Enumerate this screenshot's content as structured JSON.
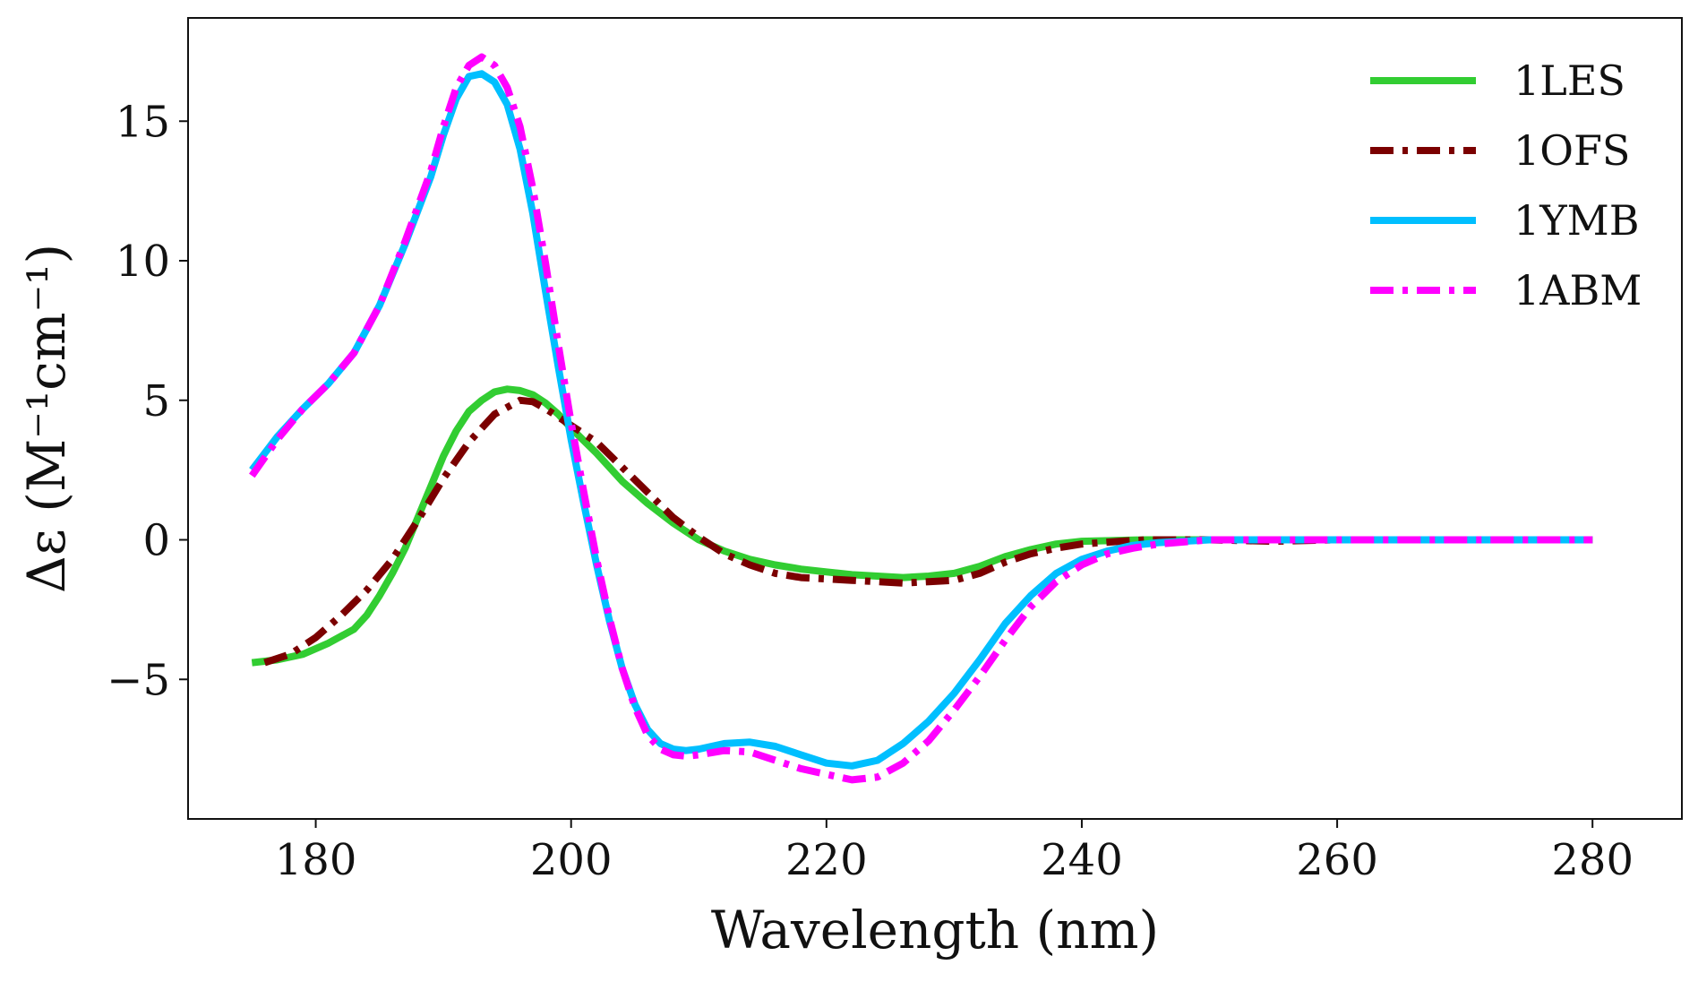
{
  "chart_data": {
    "type": "line",
    "title": "",
    "xlabel": "Wavelength (nm)",
    "ylabel": "Δε (M⁻¹cm⁻¹)",
    "xlim": [
      170,
      287
    ],
    "ylim": [
      -10,
      18.7
    ],
    "xticks": [
      180,
      200,
      220,
      240,
      260,
      280
    ],
    "yticks": [
      -5,
      0,
      5,
      10,
      15
    ],
    "xtick_labels": [
      "180",
      "200",
      "220",
      "240",
      "260",
      "280"
    ],
    "ytick_labels": [
      "−5",
      "0",
      "5",
      "10",
      "15"
    ],
    "grid": false,
    "legend_position": "top-right",
    "series": [
      {
        "name": "1LES",
        "color": "#32cd32",
        "style": "solid",
        "points": [
          [
            175,
            -4.4
          ],
          [
            177,
            -4.3
          ],
          [
            179,
            -4.1
          ],
          [
            181,
            -3.7
          ],
          [
            183,
            -3.2
          ],
          [
            184,
            -2.7
          ],
          [
            185,
            -2.0
          ],
          [
            186,
            -1.2
          ],
          [
            187,
            -0.3
          ],
          [
            188,
            0.8
          ],
          [
            189,
            1.9
          ],
          [
            190,
            3.0
          ],
          [
            191,
            3.9
          ],
          [
            192,
            4.6
          ],
          [
            193,
            5.0
          ],
          [
            194,
            5.3
          ],
          [
            195,
            5.4
          ],
          [
            196,
            5.35
          ],
          [
            197,
            5.2
          ],
          [
            198,
            4.9
          ],
          [
            199,
            4.5
          ],
          [
            200,
            4.0
          ],
          [
            202,
            3.1
          ],
          [
            204,
            2.1
          ],
          [
            206,
            1.3
          ],
          [
            208,
            0.6
          ],
          [
            210,
            0.0
          ],
          [
            212,
            -0.4
          ],
          [
            214,
            -0.7
          ],
          [
            216,
            -0.9
          ],
          [
            218,
            -1.05
          ],
          [
            220,
            -1.15
          ],
          [
            222,
            -1.25
          ],
          [
            224,
            -1.3
          ],
          [
            226,
            -1.35
          ],
          [
            228,
            -1.3
          ],
          [
            230,
            -1.2
          ],
          [
            232,
            -0.95
          ],
          [
            234,
            -0.6
          ],
          [
            236,
            -0.35
          ],
          [
            238,
            -0.15
          ],
          [
            240,
            -0.05
          ],
          [
            245,
            0.0
          ],
          [
            250,
            0.0
          ],
          [
            260,
            0.0
          ],
          [
            270,
            0.0
          ],
          [
            280,
            0.0
          ]
        ]
      },
      {
        "name": "1OFS",
        "color": "#7b0000",
        "style": "dashdot",
        "points": [
          [
            176,
            -4.4
          ],
          [
            178,
            -4.1
          ],
          [
            180,
            -3.5
          ],
          [
            182,
            -2.7
          ],
          [
            184,
            -1.8
          ],
          [
            186,
            -0.7
          ],
          [
            188,
            0.7
          ],
          [
            190,
            2.2
          ],
          [
            192,
            3.5
          ],
          [
            194,
            4.5
          ],
          [
            196,
            5.0
          ],
          [
            197,
            4.95
          ],
          [
            198,
            4.7
          ],
          [
            200,
            4.1
          ],
          [
            202,
            3.5
          ],
          [
            204,
            2.6
          ],
          [
            206,
            1.7
          ],
          [
            208,
            0.8
          ],
          [
            210,
            0.1
          ],
          [
            212,
            -0.5
          ],
          [
            214,
            -0.9
          ],
          [
            216,
            -1.2
          ],
          [
            218,
            -1.35
          ],
          [
            220,
            -1.4
          ],
          [
            222,
            -1.45
          ],
          [
            224,
            -1.5
          ],
          [
            226,
            -1.55
          ],
          [
            228,
            -1.5
          ],
          [
            230,
            -1.45
          ],
          [
            232,
            -1.2
          ],
          [
            234,
            -0.8
          ],
          [
            236,
            -0.5
          ],
          [
            238,
            -0.3
          ],
          [
            240,
            -0.15
          ],
          [
            243,
            -0.05
          ],
          [
            245,
            0.0
          ],
          [
            250,
            0.0
          ],
          [
            255,
            -0.05
          ],
          [
            260,
            0.0
          ],
          [
            270,
            0.0
          ],
          [
            280,
            0.0
          ]
        ]
      },
      {
        "name": "1YMB",
        "color": "#00bfff",
        "style": "solid",
        "points": [
          [
            175,
            2.5
          ],
          [
            177,
            3.7
          ],
          [
            179,
            4.7
          ],
          [
            181,
            5.6
          ],
          [
            183,
            6.7
          ],
          [
            185,
            8.4
          ],
          [
            187,
            10.6
          ],
          [
            189,
            13.0
          ],
          [
            190,
            14.5
          ],
          [
            191,
            15.8
          ],
          [
            192,
            16.6
          ],
          [
            193,
            16.7
          ],
          [
            194,
            16.4
          ],
          [
            195,
            15.6
          ],
          [
            196,
            14.0
          ],
          [
            197,
            11.7
          ],
          [
            198,
            8.9
          ],
          [
            199,
            6.2
          ],
          [
            200,
            3.6
          ],
          [
            201,
            1.3
          ],
          [
            202,
            -0.9
          ],
          [
            203,
            -2.9
          ],
          [
            204,
            -4.6
          ],
          [
            205,
            -5.9
          ],
          [
            206,
            -6.8
          ],
          [
            207,
            -7.3
          ],
          [
            208,
            -7.5
          ],
          [
            209,
            -7.55
          ],
          [
            210,
            -7.5
          ],
          [
            212,
            -7.3
          ],
          [
            214,
            -7.25
          ],
          [
            216,
            -7.4
          ],
          [
            218,
            -7.7
          ],
          [
            220,
            -8.0
          ],
          [
            222,
            -8.1
          ],
          [
            224,
            -7.9
          ],
          [
            226,
            -7.3
          ],
          [
            228,
            -6.5
          ],
          [
            230,
            -5.5
          ],
          [
            232,
            -4.3
          ],
          [
            234,
            -3.0
          ],
          [
            236,
            -2.0
          ],
          [
            238,
            -1.2
          ],
          [
            240,
            -0.7
          ],
          [
            242,
            -0.4
          ],
          [
            244,
            -0.2
          ],
          [
            246,
            -0.1
          ],
          [
            250,
            0.0
          ],
          [
            255,
            0.0
          ],
          [
            260,
            0.0
          ],
          [
            270,
            0.0
          ],
          [
            280,
            0.0
          ]
        ]
      },
      {
        "name": "1ABM",
        "color": "#ff00ff",
        "style": "dashdot",
        "points": [
          [
            175,
            2.3
          ],
          [
            177,
            3.6
          ],
          [
            179,
            4.7
          ],
          [
            181,
            5.6
          ],
          [
            183,
            6.7
          ],
          [
            185,
            8.4
          ],
          [
            187,
            10.7
          ],
          [
            189,
            13.2
          ],
          [
            190,
            14.8
          ],
          [
            191,
            16.2
          ],
          [
            192,
            17.0
          ],
          [
            193,
            17.3
          ],
          [
            194,
            17.0
          ],
          [
            195,
            16.2
          ],
          [
            196,
            14.8
          ],
          [
            197,
            12.6
          ],
          [
            198,
            9.9
          ],
          [
            199,
            7.0
          ],
          [
            200,
            4.2
          ],
          [
            201,
            1.7
          ],
          [
            202,
            -0.7
          ],
          [
            203,
            -2.8
          ],
          [
            204,
            -4.6
          ],
          [
            205,
            -6.0
          ],
          [
            206,
            -7.0
          ],
          [
            207,
            -7.5
          ],
          [
            208,
            -7.7
          ],
          [
            209,
            -7.75
          ],
          [
            210,
            -7.7
          ],
          [
            212,
            -7.55
          ],
          [
            214,
            -7.6
          ],
          [
            216,
            -7.9
          ],
          [
            218,
            -8.2
          ],
          [
            220,
            -8.4
          ],
          [
            222,
            -8.6
          ],
          [
            224,
            -8.5
          ],
          [
            226,
            -8.0
          ],
          [
            228,
            -7.2
          ],
          [
            230,
            -6.1
          ],
          [
            232,
            -4.9
          ],
          [
            234,
            -3.6
          ],
          [
            236,
            -2.4
          ],
          [
            238,
            -1.5
          ],
          [
            240,
            -0.9
          ],
          [
            242,
            -0.5
          ],
          [
            244,
            -0.3
          ],
          [
            246,
            -0.15
          ],
          [
            250,
            0.0
          ],
          [
            255,
            0.0
          ],
          [
            260,
            0.0
          ],
          [
            270,
            0.0
          ],
          [
            280,
            0.0
          ]
        ]
      }
    ]
  }
}
